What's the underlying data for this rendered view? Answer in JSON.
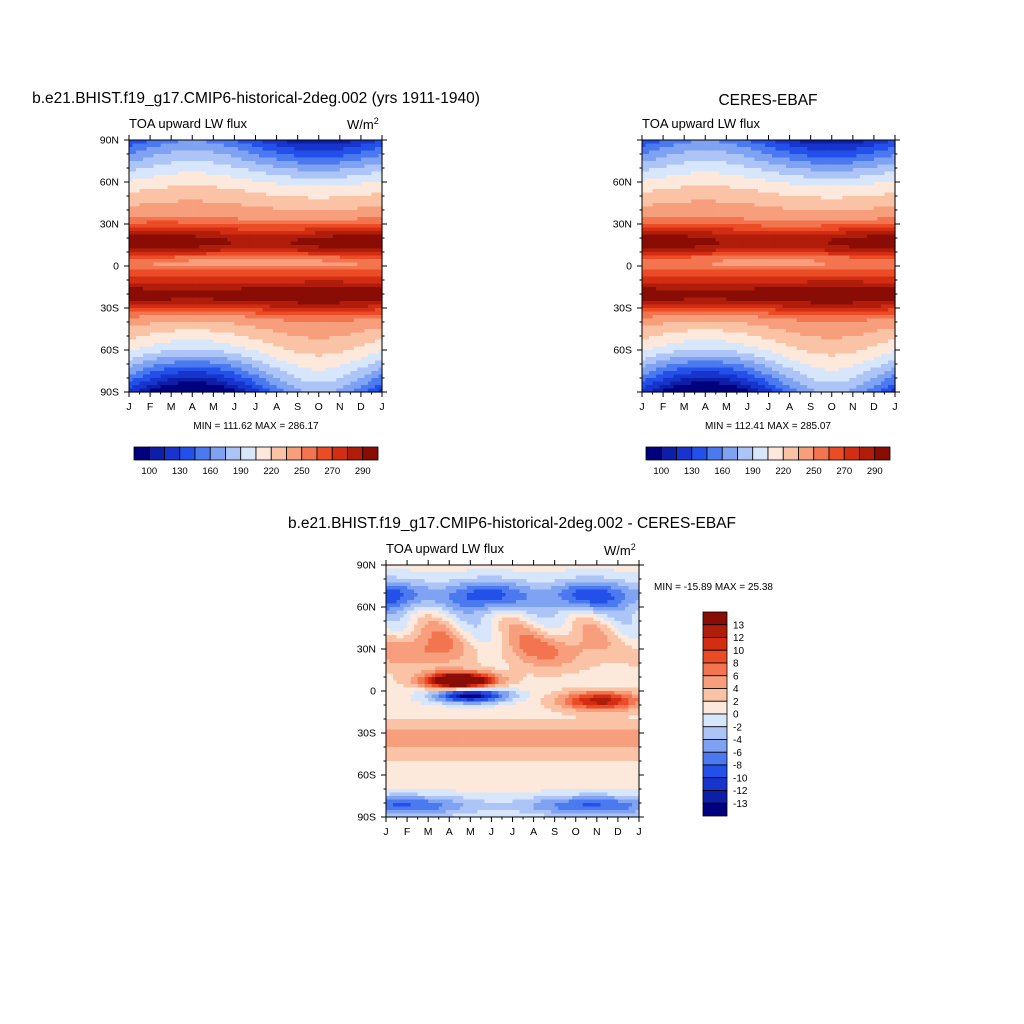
{
  "palette": {
    "abs": [
      "#00007f",
      "#0d1ea8",
      "#1734cc",
      "#2250e8",
      "#4b79f0",
      "#7fa2f2",
      "#adc4f6",
      "#d8e6fb",
      "#fde9dc",
      "#fbc3a6",
      "#f79e7d",
      "#f3754f",
      "#eb4c26",
      "#d32d13",
      "#b11d0b",
      "#8a0d05"
    ],
    "diff": [
      "#00007f",
      "#0d1ea8",
      "#1734cc",
      "#2250e8",
      "#4b79f0",
      "#7fa2f2",
      "#adc4f6",
      "#d8e6fb",
      "#fde9dc",
      "#fbc3a6",
      "#f79e7d",
      "#f3754f",
      "#eb4c26",
      "#d32d13",
      "#b11d0b",
      "#8a0d05"
    ]
  },
  "chart_data": [
    {
      "id": "model",
      "type": "heatmap",
      "title": "b.e21.BHIST.f19_g17.CMIP6-historical-2deg.002 (yrs 1911-1940)",
      "subtitle": "TOA upward LW flux",
      "units_base": "W/m",
      "units_exp": "2",
      "x_ticks": [
        "J",
        "F",
        "M",
        "A",
        "M",
        "J",
        "J",
        "A",
        "S",
        "O",
        "N",
        "D",
        "J"
      ],
      "y_ticks": [
        "90N",
        "60N",
        "30N",
        "0",
        "30S",
        "60S",
        "90S"
      ],
      "xlim": [
        0,
        12
      ],
      "ylim": [
        -90,
        90
      ],
      "stats": "MIN = 111.62 MAX = 286.17",
      "colorbar_ticks": [
        "100",
        "130",
        "160",
        "190",
        "220",
        "250",
        "270",
        "290"
      ],
      "colorbar_levels": [
        90,
        100,
        115,
        130,
        145,
        160,
        175,
        190,
        205,
        220,
        235,
        250,
        260,
        270,
        280,
        290,
        300
      ],
      "field": "model"
    },
    {
      "id": "obs",
      "type": "heatmap",
      "title": "CERES-EBAF",
      "subtitle": "TOA upward LW flux",
      "x_ticks": [
        "J",
        "F",
        "M",
        "A",
        "M",
        "J",
        "J",
        "A",
        "S",
        "O",
        "N",
        "D",
        "J"
      ],
      "y_ticks": [
        "60N",
        "30N",
        "0",
        "30S",
        "60S"
      ],
      "xlim": [
        0,
        12
      ],
      "ylim": [
        -90,
        90
      ],
      "stats": "MIN = 112.41 MAX = 285.07",
      "colorbar_ticks": [
        "100",
        "130",
        "160",
        "190",
        "220",
        "250",
        "270",
        "290"
      ],
      "colorbar_levels": [
        90,
        100,
        115,
        130,
        145,
        160,
        175,
        190,
        205,
        220,
        235,
        250,
        260,
        270,
        280,
        290,
        300
      ],
      "field": "obs"
    },
    {
      "id": "diff",
      "type": "heatmap",
      "title": "b.e21.BHIST.f19_g17.CMIP6-historical-2deg.002 - CERES-EBAF",
      "subtitle": "TOA upward LW flux",
      "units_base": "W/m",
      "units_exp": "2",
      "x_ticks": [
        "J",
        "F",
        "M",
        "A",
        "M",
        "J",
        "J",
        "A",
        "S",
        "O",
        "N",
        "D",
        "J"
      ],
      "y_ticks": [
        "90N",
        "60N",
        "30N",
        "0",
        "30S",
        "60S",
        "90S"
      ],
      "xlim": [
        0,
        12
      ],
      "ylim": [
        -90,
        90
      ],
      "stats": "MIN = -15.89 MAX =  25.38",
      "colorbar_ticks": [
        "13",
        "12",
        "10",
        "8",
        "6",
        "4",
        "2",
        "0",
        "-2",
        "-4",
        "-6",
        "-8",
        "-10",
        "-12",
        "-13"
      ],
      "colorbar_levels": [
        -20,
        -13,
        -12,
        -10,
        -8,
        -6,
        -4,
        -2,
        0,
        2,
        4,
        6,
        8,
        10,
        12,
        13,
        30
      ],
      "field": "diff"
    }
  ]
}
